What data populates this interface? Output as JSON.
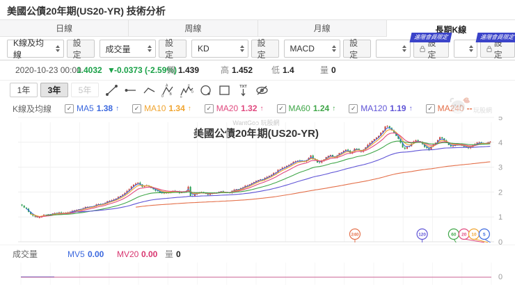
{
  "page": {
    "title": "美國公債20年期(US20-YR) 技術分析"
  },
  "icons": {
    "check": "✓",
    "down_triangle": "▼"
  },
  "tabs": [
    {
      "label": "日線"
    },
    {
      "label": "周線"
    },
    {
      "label": "月線"
    },
    {
      "label": "長期K線",
      "active": true
    }
  ],
  "indicator_bar": {
    "settings_label": "設定",
    "member_badge": "進階會員限定",
    "groups": [
      {
        "value": "K線及均線",
        "locked": false
      },
      {
        "value": "成交量",
        "locked": false
      },
      {
        "value": "KD",
        "locked": false
      },
      {
        "value": "MACD",
        "locked": false
      },
      {
        "value": "",
        "locked": true
      },
      {
        "value": "",
        "locked": true
      }
    ]
  },
  "quote": {
    "datetime": "2020-10-23 00:00",
    "price": "1.4032",
    "change": "-0.0373 (-2.59%)",
    "color": "#18a046",
    "open_label": "開",
    "open": "1.439",
    "high_label": "高",
    "high": "1.452",
    "low_label": "低",
    "low": "1.4",
    "vol_label": "量",
    "vol": "0"
  },
  "range_buttons": [
    {
      "label": "1年"
    },
    {
      "label": "3年",
      "active": true
    },
    {
      "label": "5年",
      "disabled": true
    }
  ],
  "ma_legend": {
    "title": "K線及均線",
    "items": [
      {
        "label": "MA5",
        "value": "1.38",
        "arrow": "↑",
        "color": "#3b68de"
      },
      {
        "label": "MA10",
        "value": "1.34",
        "arrow": "↑",
        "color": "#f0a42f"
      },
      {
        "label": "MA20",
        "value": "1.32",
        "arrow": "↑",
        "color": "#e0487e"
      },
      {
        "label": "MA60",
        "value": "1.24",
        "arrow": "↑",
        "color": "#3fa648"
      },
      {
        "label": "MA120",
        "value": "1.19",
        "arrow": "↑",
        "color": "#5f54d6"
      },
      {
        "label": "MA240",
        "value": "--",
        "arrow": "",
        "color": "#e4704a"
      }
    ]
  },
  "watermark": {
    "text": "WantGoo 玩股網",
    "logo_text": "玩股網"
  },
  "chart_data": {
    "type": "candlestick",
    "title": "美國公債20年期(US20-YR)",
    "symbol": "US20-YR",
    "ylim": [
      0,
      5
    ],
    "y_ticks": [
      5,
      4,
      3,
      2,
      1,
      0
    ],
    "grid": true,
    "bars": 215,
    "up_color": "#cc4439",
    "down_color": "#2a9e51",
    "anchors": [
      [
        0.0,
        1.45
      ],
      [
        0.01,
        1.3
      ],
      [
        0.022,
        1.05
      ],
      [
        0.032,
        0.96
      ],
      [
        0.045,
        1.06
      ],
      [
        0.06,
        1.1
      ],
      [
        0.075,
        1.17
      ],
      [
        0.09,
        1.12
      ],
      [
        0.105,
        1.22
      ],
      [
        0.12,
        1.3
      ],
      [
        0.135,
        1.38
      ],
      [
        0.15,
        1.45
      ],
      [
        0.165,
        1.5
      ],
      [
        0.18,
        1.6
      ],
      [
        0.195,
        1.7
      ],
      [
        0.21,
        1.85
      ],
      [
        0.225,
        2.05
      ],
      [
        0.238,
        2.28
      ],
      [
        0.248,
        2.36
      ],
      [
        0.258,
        2.22
      ],
      [
        0.268,
        2.3
      ],
      [
        0.278,
        2.15
      ],
      [
        0.29,
        2.02
      ],
      [
        0.3,
        1.95
      ],
      [
        0.312,
        2.0
      ],
      [
        0.325,
        2.06
      ],
      [
        0.338,
        1.97
      ],
      [
        0.35,
        2.02
      ],
      [
        0.354,
        2.3
      ],
      [
        0.36,
        1.8
      ],
      [
        0.372,
        1.92
      ],
      [
        0.385,
        1.98
      ],
      [
        0.398,
        1.9
      ],
      [
        0.41,
        1.95
      ],
      [
        0.425,
        2.02
      ],
      [
        0.44,
        1.96
      ],
      [
        0.455,
        2.08
      ],
      [
        0.47,
        2.18
      ],
      [
        0.485,
        2.3
      ],
      [
        0.5,
        2.45
      ],
      [
        0.515,
        2.52
      ],
      [
        0.528,
        2.65
      ],
      [
        0.54,
        2.78
      ],
      [
        0.552,
        2.95
      ],
      [
        0.565,
        3.05
      ],
      [
        0.578,
        3.2
      ],
      [
        0.59,
        3.28
      ],
      [
        0.603,
        3.22
      ],
      [
        0.617,
        3.45
      ],
      [
        0.633,
        3.14
      ],
      [
        0.645,
        3.32
      ],
      [
        0.657,
        3.5
      ],
      [
        0.668,
        3.4
      ],
      [
        0.68,
        3.58
      ],
      [
        0.692,
        3.7
      ],
      [
        0.702,
        3.58
      ],
      [
        0.714,
        3.78
      ],
      [
        0.724,
        3.62
      ],
      [
        0.735,
        3.82
      ],
      [
        0.748,
        4.05
      ],
      [
        0.76,
        4.22
      ],
      [
        0.77,
        4.45
      ],
      [
        0.778,
        4.72
      ],
      [
        0.786,
        4.55
      ],
      [
        0.795,
        4.38
      ],
      [
        0.805,
        4.1
      ],
      [
        0.816,
        3.7
      ],
      [
        0.828,
        3.88
      ],
      [
        0.84,
        4.12
      ],
      [
        0.852,
        3.98
      ],
      [
        0.868,
        3.68
      ],
      [
        0.88,
        3.92
      ],
      [
        0.893,
        4.2
      ],
      [
        0.905,
        4.02
      ],
      [
        0.917,
        3.8
      ],
      [
        0.93,
        3.92
      ],
      [
        0.942,
        3.84
      ],
      [
        0.953,
        3.78
      ],
      [
        0.963,
        3.88
      ],
      [
        0.973,
        4.02
      ],
      [
        0.985,
        3.95
      ],
      [
        1.0,
        4.0
      ]
    ],
    "ma_series": [
      {
        "name": "MA5",
        "color": "#3b68de",
        "alpha": 0.5,
        "start": 0.01
      },
      {
        "name": "MA10",
        "color": "#f0a42f",
        "alpha": 0.32,
        "start": 0.02
      },
      {
        "name": "MA20",
        "color": "#e0487e",
        "alpha": 0.18,
        "start": 0.03
      },
      {
        "name": "MA60",
        "color": "#3fa648",
        "alpha": 0.07,
        "start": 0.05
      },
      {
        "name": "MA120",
        "color": "#5f54d6",
        "alpha": 0.032,
        "start": 0.1
      },
      {
        "name": "MA240",
        "color": "#e4704a",
        "alpha": 0.012,
        "start": 0.24,
        "seed": 1.38
      }
    ],
    "ma_pins": [
      {
        "label": "240",
        "color": "#e4704a",
        "x": 0.71,
        "ax": 0.71
      },
      {
        "label": "120",
        "color": "#5f54d6",
        "x": 0.853,
        "ax": 0.853
      },
      {
        "label": "60",
        "color": "#3fa648",
        "x": 0.92,
        "ax": 0.925
      },
      {
        "label": "20",
        "color": "#e0487e",
        "x": 0.942,
        "ax": 0.985
      },
      {
        "label": "10",
        "color": "#f0a42f",
        "x": 0.963,
        "ax": 0.993
      },
      {
        "label": "5",
        "color": "#3b68de",
        "x": 0.985,
        "ax": 0.998
      },
      {
        "comment_volume_zero": ""
      }
    ],
    "volume_zero_label": "0"
  },
  "volume_legend": {
    "title": "成交量",
    "mv5_label": "MV5",
    "mv5_value": "0.00",
    "mv5_color": "#3b68de",
    "mv20_label": "MV20",
    "mv20_value": "0.00",
    "mv20_color": "#d8356f",
    "vol_label": "量",
    "vol_value": "0"
  }
}
